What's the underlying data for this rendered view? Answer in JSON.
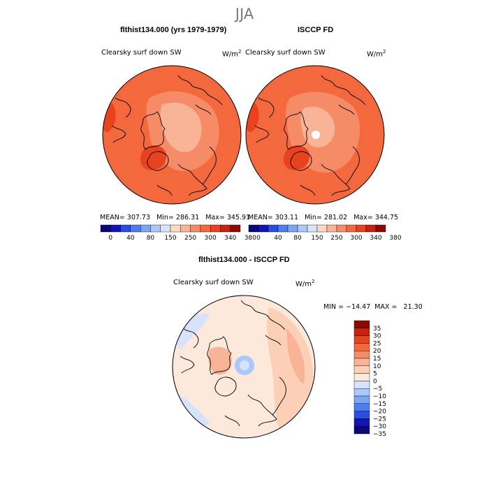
{
  "main_title": "JJA",
  "colors": {
    "abs_scale": [
      "#08087a",
      "#1414b4",
      "#2a4fe0",
      "#4d7ef0",
      "#7aa6f5",
      "#aac8fa",
      "#d6e3fb",
      "#fbd9c5",
      "#f9b497",
      "#f68c67",
      "#f3683c",
      "#e8431e",
      "#c42410",
      "#8b0a04"
    ],
    "diff_scale": [
      "#08087a",
      "#1414b4",
      "#2a4fe0",
      "#4d7ef0",
      "#7aa6f5",
      "#aac8fa",
      "#d6e3fb",
      "#fde9dc",
      "#fbd0b6",
      "#f9b497",
      "#f68c67",
      "#f3683c",
      "#e8431e",
      "#c42410",
      "#8b0a04"
    ],
    "coast": "#000000"
  },
  "chart_data": [
    {
      "type": "heatmap",
      "projection": "north-polar-stereographic",
      "title": "flthist134.000 (yrs 1979-1979)",
      "variable": "Clearsky surf down SW",
      "units_base": "W/m",
      "units_exp": "2",
      "stats": "MEAN= 307.73   Min= 286.31   Max= 345.91",
      "mean": 307.73,
      "min": 286.31,
      "max": 345.91,
      "colorbar_ticks": [
        "0",
        "40",
        "80",
        "150",
        "250",
        "300",
        "340",
        "380"
      ]
    },
    {
      "type": "heatmap",
      "projection": "north-polar-stereographic",
      "title": "ISCCP FD",
      "variable": "Clearsky surf down SW",
      "units_base": "W/m",
      "units_exp": "2",
      "stats": "MEAN= 303.11   Min= 281.02   Max= 344.75",
      "mean": 303.11,
      "min": 281.02,
      "max": 344.75,
      "colorbar_ticks": [
        "0",
        "40",
        "80",
        "150",
        "250",
        "300",
        "340",
        "380"
      ]
    },
    {
      "type": "heatmap",
      "projection": "north-polar-stereographic",
      "title": "flthist134.000 - ISCCP FD",
      "variable": "Clearsky surf down SW",
      "units_base": "W/m",
      "units_exp": "2",
      "stats": "MIN = −14.47  MAX =   21.30",
      "min": -14.47,
      "max": 21.3,
      "colorbar_ticks": [
        "35",
        "30",
        "25",
        "20",
        "15",
        "10",
        "5",
        "0",
        "−5",
        "−10",
        "−15",
        "−20",
        "−25",
        "−30",
        "−35"
      ]
    }
  ]
}
